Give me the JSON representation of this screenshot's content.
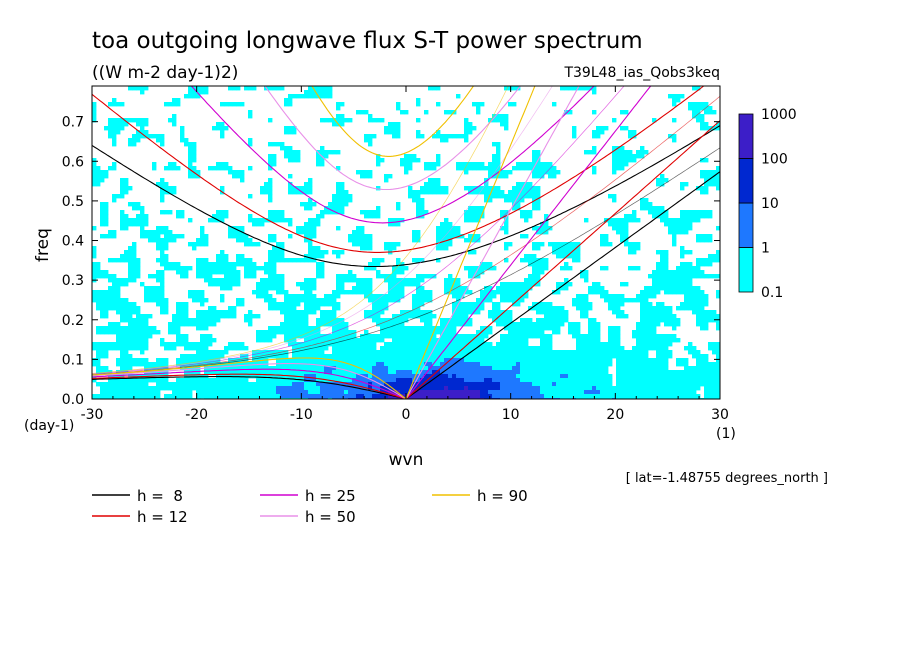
{
  "chart_data": {
    "type": "heatmap",
    "title": "toa outgoing longwave flux S-T power spectrum",
    "subtitle": "((W m-2 day-1)2)",
    "run_label": "T39L48_ias_Qobs3keq",
    "xlabel": "wvn",
    "ylabel": "freq",
    "x_unit": "(1)",
    "y_unit": "(day-1)",
    "xlim": [
      -30,
      30
    ],
    "ylim": [
      0,
      0.79
    ],
    "x_ticks": [
      -30,
      -20,
      -10,
      0,
      10,
      20,
      30
    ],
    "x_tick_labels": [
      "-30",
      "-20",
      "-10",
      "0",
      "10",
      "20",
      "30"
    ],
    "y_ticks": [
      0,
      0.1,
      0.2,
      0.3,
      0.4,
      0.5,
      0.6,
      0.7
    ],
    "y_tick_labels": [
      "0.0",
      "0.1",
      "0.2",
      "0.3",
      "0.4",
      "0.5",
      "0.6",
      "0.7"
    ],
    "colorbar": {
      "levels": [
        "0.1",
        "1",
        "10",
        "100",
        "1000"
      ],
      "colors": [
        "#00ffff",
        "#1e78ff",
        "#0028d0",
        "#3c1ec8"
      ]
    },
    "footnote": "[ lat=-1.48755 degrees_north ]",
    "dispersion_curves": [
      {
        "label": "h =  8",
        "h": 8,
        "color": "#000000"
      },
      {
        "label": "h = 12",
        "h": 12,
        "color": "#e00000"
      },
      {
        "label": "h = 25",
        "h": 25,
        "color": "#d000d0"
      },
      {
        "label": "h = 50",
        "h": 50,
        "color": "#e890e8"
      },
      {
        "label": "h = 90",
        "h": 90,
        "color": "#f0c000"
      }
    ],
    "blob_seed": 73
  }
}
